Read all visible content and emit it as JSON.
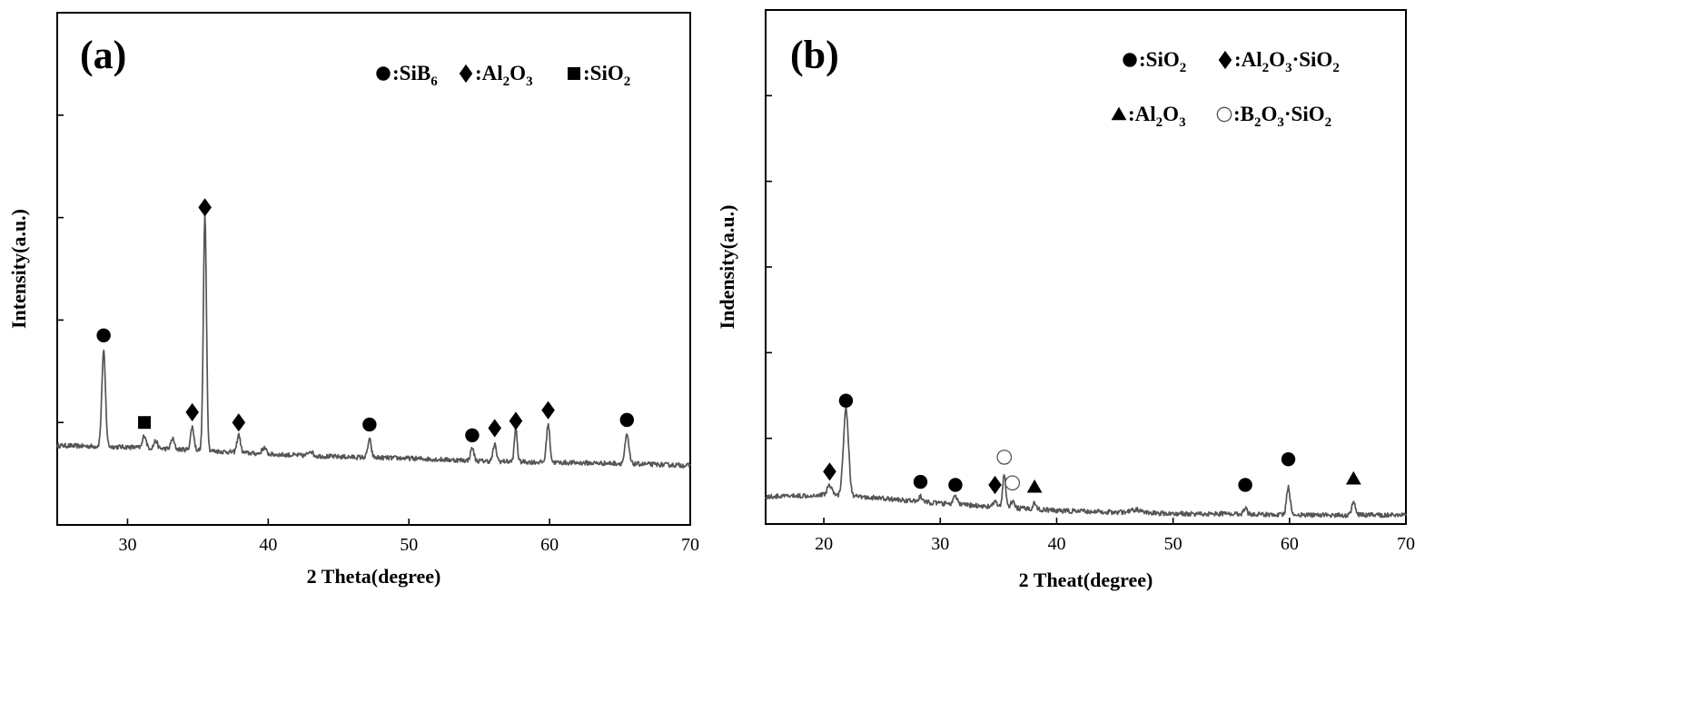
{
  "chart_data": [
    {
      "type": "line",
      "panel_label": "(a)",
      "xlabel": "2 Theta(degree)",
      "ylabel": "Intensity(a.u.)",
      "xlim": [
        25,
        70
      ],
      "ylim": [
        0,
        100
      ],
      "xticks": [
        30,
        40,
        50,
        60,
        70
      ],
      "xtick_labels": [
        "30",
        "40",
        "50",
        "60",
        "70"
      ],
      "ytick_count": 4,
      "yticks_labeled": false,
      "grid": false,
      "legend_position": "top-right",
      "legend": [
        {
          "symbol": "filled-circle",
          "parts": [
            ":SiB",
            "6"
          ]
        },
        {
          "symbol": "filled-diamond",
          "parts": [
            ":Al",
            "2",
            "O",
            "3"
          ]
        },
        {
          "symbol": "filled-square",
          "parts": [
            ":SiO",
            "2"
          ]
        }
      ],
      "series": [
        {
          "color": "#555555",
          "baseline": [
            [
              25,
              15.5
            ],
            [
              30,
              15.2
            ],
            [
              35,
              14.6
            ],
            [
              40,
              13.8
            ],
            [
              45,
              13.3
            ],
            [
              50,
              13.0
            ],
            [
              55,
              12.5
            ],
            [
              60,
              12.2
            ],
            [
              65,
              12.0
            ],
            [
              70,
              11.6
            ]
          ],
          "peaks": [
            {
              "x": 28.3,
              "height": 18.5,
              "width": 0.13
            },
            {
              "x": 31.2,
              "height": 2.5,
              "width": 0.12
            },
            {
              "x": 32.0,
              "height": 1.5,
              "width": 0.12
            },
            {
              "x": 33.2,
              "height": 2.0,
              "width": 0.12
            },
            {
              "x": 34.6,
              "height": 4.5,
              "width": 0.12
            },
            {
              "x": 35.5,
              "height": 46.0,
              "width": 0.11
            },
            {
              "x": 37.9,
              "height": 3.5,
              "width": 0.12
            },
            {
              "x": 39.7,
              "height": 1.2,
              "width": 0.15
            },
            {
              "x": 43.0,
              "height": 1.0,
              "width": 0.15
            },
            {
              "x": 47.2,
              "height": 3.5,
              "width": 0.12
            },
            {
              "x": 54.5,
              "height": 2.5,
              "width": 0.12
            },
            {
              "x": 56.1,
              "height": 3.2,
              "width": 0.12
            },
            {
              "x": 57.6,
              "height": 6.5,
              "width": 0.1
            },
            {
              "x": 59.9,
              "height": 7.5,
              "width": 0.12
            },
            {
              "x": 65.5,
              "height": 5.5,
              "width": 0.14
            }
          ]
        }
      ],
      "annotations": [
        {
          "symbol": "filled-circle",
          "x": 28.3,
          "y": 37
        },
        {
          "symbol": "filled-square",
          "x": 31.2,
          "y": 20
        },
        {
          "symbol": "filled-diamond",
          "x": 34.6,
          "y": 22
        },
        {
          "symbol": "filled-diamond",
          "x": 35.5,
          "y": 62
        },
        {
          "symbol": "filled-diamond",
          "x": 37.9,
          "y": 20
        },
        {
          "symbol": "filled-circle",
          "x": 47.2,
          "y": 19.6
        },
        {
          "symbol": "filled-circle",
          "x": 54.5,
          "y": 17.5
        },
        {
          "symbol": "filled-diamond",
          "x": 56.1,
          "y": 18.9
        },
        {
          "symbol": "filled-diamond",
          "x": 57.6,
          "y": 20.3
        },
        {
          "symbol": "filled-diamond",
          "x": 59.9,
          "y": 22.4
        },
        {
          "symbol": "filled-circle",
          "x": 65.5,
          "y": 20.5
        }
      ]
    },
    {
      "type": "line",
      "panel_label": "(b)",
      "xlabel": "2 Theat(degree)",
      "ylabel": "Indensity(a.u.)",
      "xlim": [
        15,
        70
      ],
      "ylim": [
        0,
        100
      ],
      "xticks": [
        20,
        30,
        40,
        50,
        60,
        70
      ],
      "xtick_labels": [
        "20",
        "30",
        "40",
        "50",
        "60",
        "70"
      ],
      "ytick_count": 5,
      "yticks_labeled": false,
      "grid": false,
      "legend_position": "top-right",
      "legend": [
        {
          "symbol": "filled-circle",
          "parts": [
            ":SiO",
            "2"
          ]
        },
        {
          "symbol": "filled-diamond",
          "parts": [
            ":Al",
            "2",
            "O",
            "3",
            "·SiO",
            "2"
          ]
        },
        {
          "symbol": "filled-triangle",
          "parts": [
            ":Al",
            "2",
            "O",
            "3"
          ]
        },
        {
          "symbol": "open-circle",
          "parts": [
            ":B",
            "2",
            "O",
            "3",
            "·SiO",
            "2"
          ]
        }
      ],
      "series": [
        {
          "color": "#555555",
          "baseline": [
            [
              15,
              5.3
            ],
            [
              18,
              5.5
            ],
            [
              20,
              5.7
            ],
            [
              25,
              5.0
            ],
            [
              30,
              4.0
            ],
            [
              35,
              3.3
            ],
            [
              40,
              2.6
            ],
            [
              45,
              2.3
            ],
            [
              50,
              2.0
            ],
            [
              55,
              2.0
            ],
            [
              60,
              1.8
            ],
            [
              65,
              1.7
            ],
            [
              70,
              1.8
            ]
          ],
          "peaks": [
            {
              "x": 20.5,
              "height": 2.0,
              "width": 0.2
            },
            {
              "x": 21.9,
              "height": 17.0,
              "width": 0.22
            },
            {
              "x": 28.3,
              "height": 1.0,
              "width": 0.15
            },
            {
              "x": 31.3,
              "height": 1.5,
              "width": 0.18
            },
            {
              "x": 34.7,
              "height": 1.0,
              "width": 0.15
            },
            {
              "x": 35.5,
              "height": 6.5,
              "width": 0.13
            },
            {
              "x": 36.2,
              "height": 1.2,
              "width": 0.15
            },
            {
              "x": 38.1,
              "height": 1.2,
              "width": 0.15
            },
            {
              "x": 46.8,
              "height": 0.6,
              "width": 0.4
            },
            {
              "x": 56.2,
              "height": 1.3,
              "width": 0.13
            },
            {
              "x": 59.9,
              "height": 5.5,
              "width": 0.15
            },
            {
              "x": 65.5,
              "height": 2.6,
              "width": 0.15
            }
          ]
        }
      ],
      "annotations": [
        {
          "symbol": "filled-diamond",
          "x": 20.5,
          "y": 10.2
        },
        {
          "symbol": "filled-circle",
          "x": 21.9,
          "y": 24.0
        },
        {
          "symbol": "filled-circle",
          "x": 28.3,
          "y": 8.2
        },
        {
          "symbol": "filled-circle",
          "x": 31.3,
          "y": 7.6
        },
        {
          "symbol": "filled-diamond",
          "x": 34.7,
          "y": 7.6
        },
        {
          "symbol": "open-circle",
          "x": 35.5,
          "y": 13.0
        },
        {
          "symbol": "open-circle",
          "x": 36.2,
          "y": 8.0
        },
        {
          "symbol": "filled-triangle",
          "x": 38.1,
          "y": 7.2
        },
        {
          "symbol": "filled-circle",
          "x": 56.2,
          "y": 7.6
        },
        {
          "symbol": "filled-circle",
          "x": 59.9,
          "y": 12.6
        },
        {
          "symbol": "filled-triangle",
          "x": 65.5,
          "y": 8.8
        }
      ]
    }
  ]
}
